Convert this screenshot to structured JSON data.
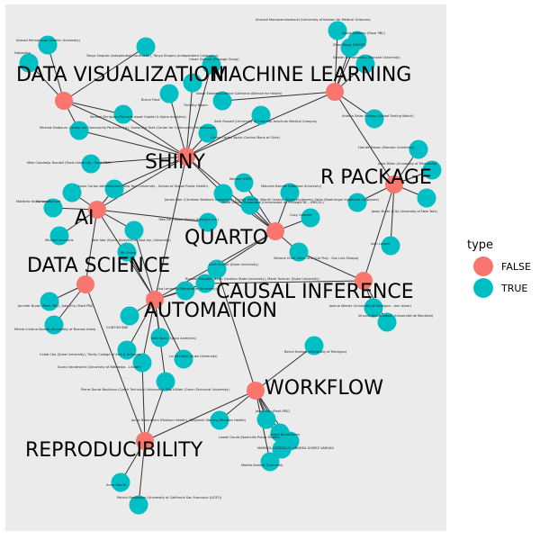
{
  "legend": {
    "title": "type",
    "items": [
      {
        "label": "FALSE",
        "color": "#F8766D"
      },
      {
        "label": "TRUE",
        "color": "#00BFC4"
      }
    ]
  },
  "colors": {
    "panel": "#EBEBEB",
    "edge": "#333333",
    "false": "#F8766D",
    "true": "#00BFC4"
  },
  "topics": [
    {
      "id": "dataviz",
      "label": "DATA VISUALIZATION"
    },
    {
      "id": "ml",
      "label": "MACHINE LEARNING"
    },
    {
      "id": "shiny",
      "label": "SHINY"
    },
    {
      "id": "rpkg",
      "label": "R PACKAGE"
    },
    {
      "id": "ai",
      "label": "AI"
    },
    {
      "id": "quarto",
      "label": "QUARTO"
    },
    {
      "id": "ds",
      "label": "DATA SCIENCE"
    },
    {
      "id": "causal",
      "label": "CAUSAL INFERENCE"
    },
    {
      "id": "auto",
      "label": "AUTOMATION"
    },
    {
      "id": "workflow",
      "label": "WORKFLOW"
    },
    {
      "id": "repro",
      "label": "REPRODUCIBILITY"
    }
  ],
  "people": [
    {
      "id": "p1",
      "label": "Ahmad Permatasari (Deakin University)"
    },
    {
      "id": "p2",
      "label": "Fatbardha"
    },
    {
      "id": "p3",
      "label": "Tanya Shapiro (Independent Contractor), Tanya Shapiro (Independent Contractor)"
    },
    {
      "id": "p4",
      "label": "Umair Durrani (Presage Group)"
    },
    {
      "id": "p5",
      "label": "Bruno Frost"
    },
    {
      "id": "p6",
      "label": "Akbar Edalesti (Central California Alliance for Health)"
    },
    {
      "id": "p7",
      "label": "Timothy Basen"
    },
    {
      "id": "p8",
      "label": "Samuel Enriquez (Pinnacle Asset Capital & Alpha Analytics)"
    },
    {
      "id": "p9",
      "label": "Michele Dalbourn (Center for Community Partnerships), Samantha Toet (Center for Community Partnerships)"
    },
    {
      "id": "p10",
      "label": "Seth Russell (University of Colorado Anschutz Medical Campus)"
    },
    {
      "id": "p11",
      "label": "Carlos Cortes Ayala (Central Bank of Chile)"
    },
    {
      "id": "p12",
      "label": "Ahmadi Montazeriniasharsi (University of Kashan for Medical Sciences)"
    },
    {
      "id": "p13",
      "label": "David Hoffman (Pozzi PBC)"
    },
    {
      "id": "p14",
      "label": "Zhan Wang (NHSSP)"
    },
    {
      "id": "p15",
      "label": "Sreedh Ramanarshui (Monash University)"
    },
    {
      "id": "p16",
      "label": "Andrea Salas Ortuzar (Global Fishing Watch)"
    },
    {
      "id": "p17",
      "label": "Harriet Mason (Monash University)"
    },
    {
      "id": "p18",
      "label": "Josia Miller (University of Minnesota)"
    },
    {
      "id": "p19",
      "label": "Jeremy Seiss (Boehringer Ingelheim Singapore)"
    },
    {
      "id": "p20",
      "label": "Jason Bryer (City University of New York)"
    },
    {
      "id": "p21",
      "label": "Mike Catalmija Rundell (Posit University - Posit PBC)"
    },
    {
      "id": "p22",
      "label": "Nuno Carlos Vallenhausen (New York University - School of Global Public Health)"
    },
    {
      "id": "p23",
      "label": "Matthew Hartshorne"
    },
    {
      "id": "p24",
      "label": "Ashley Marriott"
    },
    {
      "id": "p25",
      "label": "James Harr (Christian Brothers University), Christa Pfeiffer (Merrill Greene University)"
    },
    {
      "id": "p26",
      "label": "Wenzel (ESM)"
    },
    {
      "id": "p27",
      "label": "Malcolm Barrett (Stanford University)"
    },
    {
      "id": "p28",
      "label": "Lucas Vilelas Scharpless (Universidad de Ecologia RC - INECOL)"
    },
    {
      "id": "p29",
      "label": "Michael Laurentis"
    },
    {
      "id": "p30",
      "label": "Jake Ade (Sysco Analytics of East Jay, University)"
    },
    {
      "id": "p31",
      "label": "Take De Kleppe (Sysco Analytics Inc.)"
    },
    {
      "id": "p32",
      "label": "Kit Chang"
    },
    {
      "id": "p33",
      "label": "Coxy Cabrera"
    },
    {
      "id": "p34",
      "label": "Ivan Larsen"
    },
    {
      "id": "p35",
      "label": "Colin Rundel (Duke University)"
    },
    {
      "id": "p36",
      "label": "Rundell Maxwell (North Carolina State University), Marie Tuckner (Duke University)"
    },
    {
      "id": "p37",
      "label": "Viktoria Chen, Amin Aral (Cal Poly - San Luis Obispo)"
    },
    {
      "id": "p38",
      "label": "Jennifer Bryan (Posit PBC), Jake Zhu (Posit PBC)"
    },
    {
      "id": "p39",
      "label": "Mireia Cristina Naretti (University of Buenos Aires)"
    },
    {
      "id": "p40",
      "label": "Lisa Lendway (Macalester University)"
    },
    {
      "id": "p41",
      "label": "CLINTON BAE"
    },
    {
      "id": "p42",
      "label": "Joshua Wexler (University of Michigan - Ann Arbor)"
    },
    {
      "id": "p43",
      "label": "Vincent Arel-Bundock (Université de Montréal)"
    },
    {
      "id": "p44",
      "label": "Bernd Hansen (University of Michigan)"
    },
    {
      "id": "p45",
      "label": "Alex Kurtz (Sysco Analytics)"
    },
    {
      "id": "p46",
      "label": "Caleb Cho (Duke University), Trinity College of Arts & Sciences"
    },
    {
      "id": "p47",
      "label": "Liz McCahill (Duke University)"
    },
    {
      "id": "p48",
      "label": "Susan Vandestein (University of Nebraska - Lincoln)"
    },
    {
      "id": "p49",
      "label": "Pierre Donat Bouillaux (Czech Technical University), Filip Křížek (Czech Technical University)"
    },
    {
      "id": "p50",
      "label": "Jacob Rosenblum (Positron Health), Benjamin Stanley (Positron Health)"
    },
    {
      "id": "p51",
      "label": "Jacob Hsu (Posit PBC)"
    },
    {
      "id": "p52",
      "label": "Lowell Gould (Nashville Public Health)"
    },
    {
      "id": "p53",
      "label": "Jackie Brookhaven"
    },
    {
      "id": "p54",
      "label": "MARISOL CARDULLO, ANDREA GOMEZ VARGAS"
    },
    {
      "id": "p55",
      "label": "Medha Kamble (Comcast)"
    },
    {
      "id": "p56",
      "label": "Anna Garcia"
    },
    {
      "id": "p57",
      "label": "Patrick Bengtsson (University of California San Francisco (UCSF))"
    }
  ]
}
